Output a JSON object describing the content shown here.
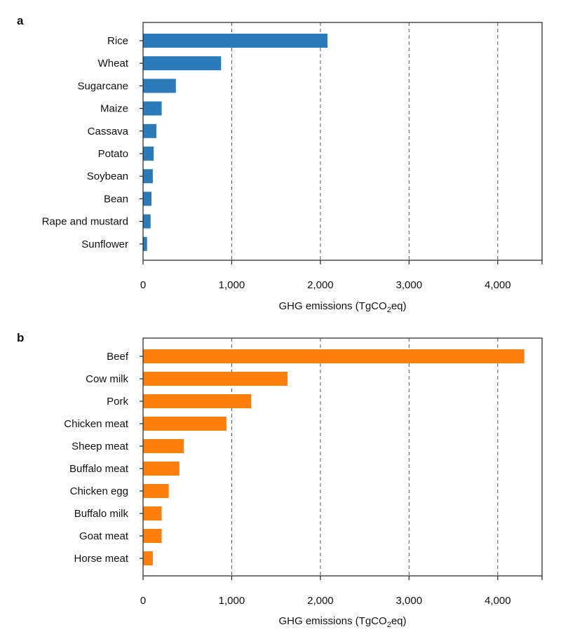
{
  "chart_data": [
    {
      "type": "bar",
      "orientation": "horizontal",
      "panel": "a",
      "color": "#2b7bba",
      "categories": [
        "Rice",
        "Wheat",
        "Sugarcane",
        "Maize",
        "Cassava",
        "Potato",
        "Soybean",
        "Bean",
        "Rape and mustard",
        "Sunflower"
      ],
      "values": [
        2080,
        880,
        370,
        210,
        150,
        120,
        110,
        95,
        85,
        45
      ],
      "xlabel_main": "GHG emissions (TgCO",
      "xlabel_sub": "2",
      "xlabel_end": "eq)",
      "xlim": [
        0,
        4500
      ],
      "xticks": [
        0,
        1000,
        2000,
        3000,
        4000
      ],
      "xtick_labels": [
        "0",
        "1,000",
        "2,000",
        "3,000",
        "4,000"
      ],
      "grid": "vertical-dashed"
    },
    {
      "type": "bar",
      "orientation": "horizontal",
      "panel": "b",
      "color": "#ff7f0e",
      "categories": [
        "Beef",
        "Cow milk",
        "Pork",
        "Chicken meat",
        "Sheep meat",
        "Buffalo meat",
        "Chicken egg",
        "Buffalo milk",
        "Goat meat",
        "Horse meat"
      ],
      "values": [
        4300,
        1630,
        1220,
        940,
        460,
        410,
        290,
        210,
        210,
        110
      ],
      "xlabel_main": "GHG emissions (TgCO",
      "xlabel_sub": "2",
      "xlabel_end": "eq)",
      "xlim": [
        0,
        4500
      ],
      "xticks": [
        0,
        1000,
        2000,
        3000,
        4000
      ],
      "xtick_labels": [
        "0",
        "1,000",
        "2,000",
        "3,000",
        "4,000"
      ],
      "grid": "vertical-dashed"
    }
  ]
}
